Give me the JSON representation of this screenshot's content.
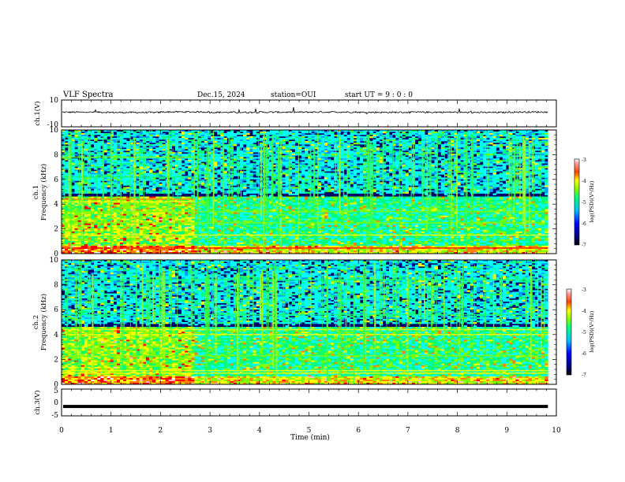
{
  "header": {
    "title": "VLF Spectra",
    "date": "Dec.15, 2024",
    "station": "station=OUI",
    "start": "start UT =  9 : 0 : 0"
  },
  "chart_data": [
    {
      "type": "line",
      "panel": "waveform-ch1",
      "ylabel": "ch.1(V)",
      "ylim": [
        -10,
        10
      ],
      "y_ticks": [
        "10",
        "-10"
      ],
      "xlim": [
        0,
        10
      ],
      "series": [
        {
          "values_note_level": 0.9,
          "values": [
            0.9,
            0.7,
            1.1,
            0.8,
            0.9,
            1.0,
            0.8,
            0.9,
            0.7,
            1.0,
            0.9
          ]
        }
      ]
    },
    {
      "type": "heatmap",
      "panel": "spectrogram-ch1",
      "ylabel": "ch.1\nFrequency (kHz)",
      "ylim": [
        0,
        10
      ],
      "y_ticks": [
        "0",
        "2",
        "4",
        "6",
        "8",
        "10"
      ],
      "xlim": [
        0,
        10
      ],
      "x_data_end": 9.83,
      "colorbar": {
        "label": "log(PSD)(V²/Hz)",
        "range": [
          -7,
          -3
        ],
        "ticks": [
          "-3",
          "-4",
          "-5",
          "-6",
          "-7"
        ]
      }
    },
    {
      "type": "heatmap",
      "panel": "spectrogram-ch2",
      "ylabel": "ch.2\nFrequency (kHz)",
      "ylim": [
        0,
        10
      ],
      "y_ticks": [
        "0",
        "2",
        "4",
        "6",
        "8",
        "10"
      ],
      "xlim": [
        0,
        10
      ],
      "x_data_end": 9.83,
      "colorbar": {
        "label": "log(PSD)(V²/Hz)",
        "range": [
          -7,
          -3
        ],
        "ticks": [
          "-3",
          "-4",
          "-5",
          "-6",
          "-7"
        ]
      }
    },
    {
      "type": "line",
      "panel": "waveform-ch3",
      "ylabel": "ch.3(V)",
      "ylim": [
        -5,
        5
      ],
      "y_ticks": [
        "5",
        "0",
        "-5"
      ],
      "xlim": [
        0,
        10
      ],
      "xlabel": "Time (min)",
      "x_ticks": [
        "0",
        "1",
        "2",
        "3",
        "4",
        "5",
        "6",
        "7",
        "8",
        "9",
        "10"
      ],
      "series": [
        {
          "values": [
            -1.5,
            -1.5,
            -1.5,
            -1.5,
            -1.5,
            -1.5,
            -1.5,
            -1.5,
            -1.5,
            -1.5,
            -1.5
          ]
        }
      ]
    }
  ],
  "colors": {
    "colormap": [
      "#000066",
      "#0000ff",
      "#00a0ff",
      "#00ffff",
      "#00ff80",
      "#80ff00",
      "#ffff00",
      "#ff8000",
      "#ff0000",
      "#ffc0c0",
      "#ffffff"
    ]
  }
}
